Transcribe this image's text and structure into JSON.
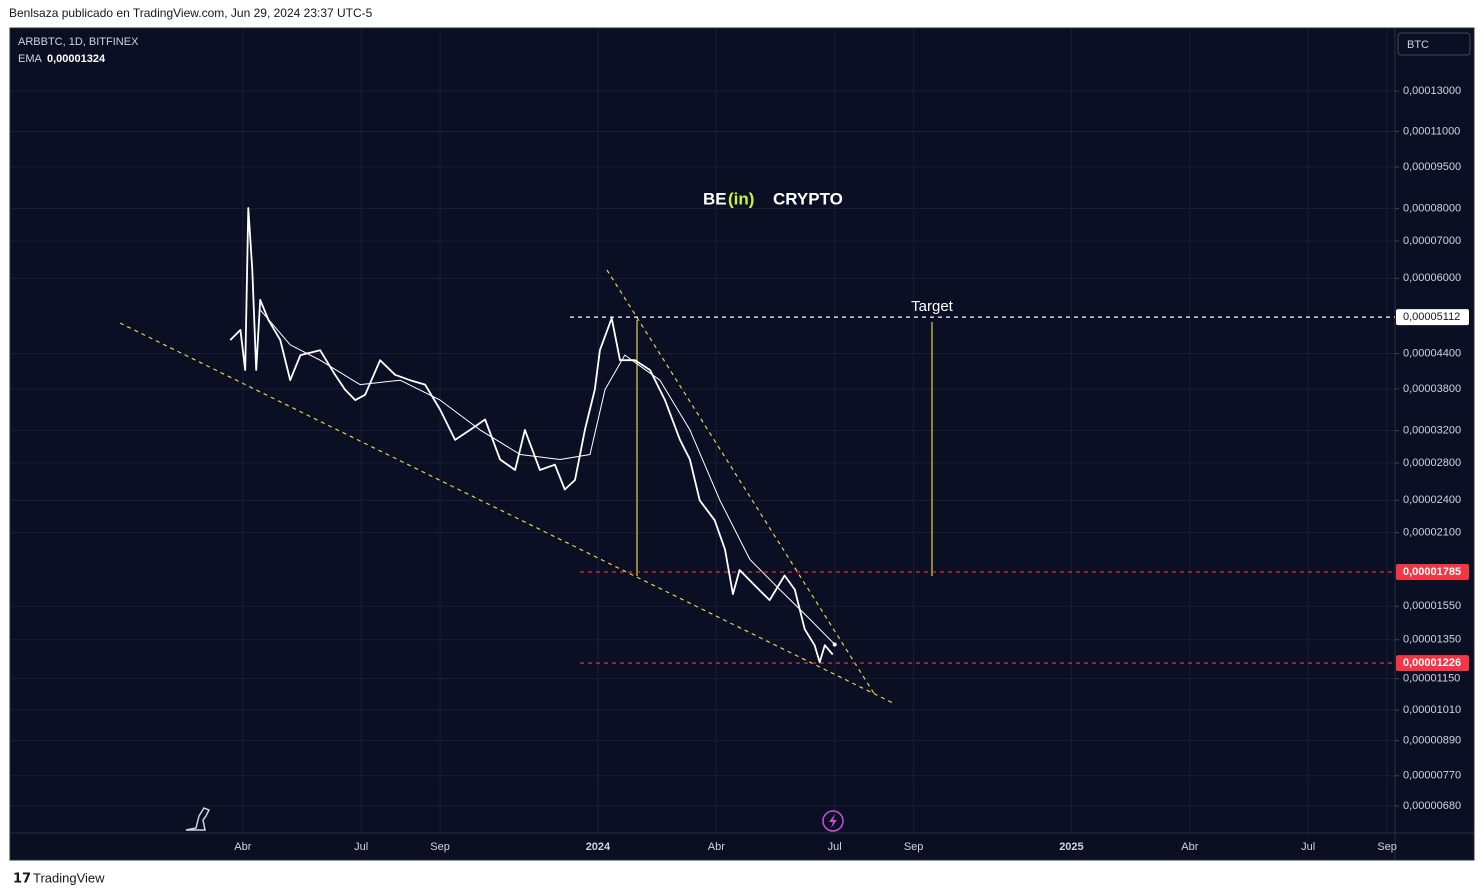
{
  "header": "Benlsaza publicado en TradingView.com, Jun 29, 2024 23:37 UTC-5",
  "footer": "TradingView",
  "currency": "BTC",
  "watermark": [
    "BE",
    "(in)",
    "CRYPTO"
  ],
  "chart_data": {
    "type": "line",
    "log_scale": true,
    "grid": true,
    "annotation": "Target",
    "xlim": [
      -14.9,
      20.2
    ],
    "xticks": [
      {
        "value": -9,
        "label": "Abr"
      },
      {
        "value": -6,
        "label": "Jul"
      },
      {
        "value": -4,
        "label": "Sep"
      },
      {
        "value": 0,
        "label": "2024"
      },
      {
        "value": 3,
        "label": "Abr"
      },
      {
        "value": 6,
        "label": "Jul"
      },
      {
        "value": 8,
        "label": "Sep"
      },
      {
        "value": 12,
        "label": "2025"
      },
      {
        "value": 15,
        "label": "Abr"
      },
      {
        "value": 18,
        "label": "Jul"
      },
      {
        "value": 20,
        "label": "Sep"
      }
    ],
    "ylim": [
      6.08e-06,
      0.0001686
    ],
    "yticks": [
      {
        "value": 0.00013,
        "label": "0,00013000"
      },
      {
        "value": 0.00011,
        "label": "0,00011000"
      },
      {
        "value": 9.5e-05,
        "label": "0,00009500"
      },
      {
        "value": 8e-05,
        "label": "0,00008000"
      },
      {
        "value": 7e-05,
        "label": "0,00007000"
      },
      {
        "value": 6e-05,
        "label": "0,00006000"
      },
      {
        "value": 4.4e-05,
        "label": "0,00004400"
      },
      {
        "value": 3.8e-05,
        "label": "0,00003800"
      },
      {
        "value": 3.2e-05,
        "label": "0,00003200"
      },
      {
        "value": 2.8e-05,
        "label": "0,00002800"
      },
      {
        "value": 2.4e-05,
        "label": "0,00002400"
      },
      {
        "value": 2.1e-05,
        "label": "0,00002100"
      },
      {
        "value": 1.55e-05,
        "label": "0,00001550"
      },
      {
        "value": 1.35e-05,
        "label": "0,00001350"
      },
      {
        "value": 1.15e-05,
        "label": "0,00001150"
      },
      {
        "value": 1.01e-05,
        "label": "0,00001010"
      },
      {
        "value": 8.9e-06,
        "label": "0,00000890"
      },
      {
        "value": 7.7e-06,
        "label": "0,00000770"
      },
      {
        "value": 6.8e-06,
        "label": "0,00000680"
      }
    ],
    "levels": [
      {
        "value": 5.112e-05,
        "label": "0,00005112",
        "color": "#ffffff"
      },
      {
        "value": 1.785e-05,
        "label": "0,00001785",
        "color": "#f23645"
      },
      {
        "value": 1.226e-05,
        "label": "0,00001226",
        "color": "#f23645"
      }
    ],
    "series": [
      {
        "name": "ARBBTC, 1D, BITFINEX",
        "color": "#ffffff",
        "x": [
          -9.32,
          -9.06,
          -8.94,
          -8.86,
          -8.76,
          -8.66,
          -8.56,
          -8.35,
          -8.05,
          -7.8,
          -7.54,
          -7.04,
          -6.66,
          -6.41,
          -6.15,
          -5.9,
          -5.52,
          -5.14,
          -4.76,
          -4.38,
          -4.0,
          -3.62,
          -3.24,
          -2.86,
          -2.48,
          -2.1,
          -1.85,
          -1.47,
          -1.09,
          -0.84,
          -0.58,
          -0.33,
          -0.08,
          0.05,
          0.35,
          0.56,
          0.94,
          1.32,
          1.7,
          2.08,
          2.33,
          2.58,
          2.96,
          3.22,
          3.42,
          3.59,
          3.97,
          4.35,
          4.73,
          4.99,
          5.24,
          5.49,
          5.62,
          5.75,
          5.95
        ],
        "values": [
          4.65e-05,
          4.85e-05,
          4.11e-05,
          8.02e-05,
          6.21e-05,
          4.11e-05,
          5.49e-05,
          5.05e-05,
          4.65e-05,
          3.94e-05,
          4.37e-05,
          4.46e-05,
          4.03e-05,
          3.79e-05,
          3.63e-05,
          3.71e-05,
          4.28e-05,
          4.03e-05,
          3.94e-05,
          3.87e-05,
          3.49e-05,
          3.08e-05,
          3.21e-05,
          3.35e-05,
          2.84e-05,
          2.72e-05,
          3.21e-05,
          2.72e-05,
          2.78e-05,
          2.51e-05,
          2.61e-05,
          3.21e-05,
          3.79e-05,
          4.46e-05,
          5.09e-05,
          4.28e-05,
          4.28e-05,
          4.11e-05,
          3.63e-05,
          3.08e-05,
          2.84e-05,
          2.4e-05,
          2.21e-05,
          1.96e-05,
          1.63e-05,
          1.8e-05,
          1.69e-05,
          1.59e-05,
          1.76e-05,
          1.66e-05,
          1.41e-05,
          1.32e-05,
          1.23e-05,
          1.32e-05,
          1.27e-05
        ]
      },
      {
        "name": "EMA",
        "color": "#ffffff",
        "last_value": {
          "value": 1.324e-05,
          "label": "0,00001324"
        },
        "x": [
          -8.56,
          -7.8,
          -7.04,
          -6.03,
          -5.01,
          -4.0,
          -2.99,
          -1.97,
          -0.96,
          -0.2,
          0.18,
          0.68,
          1.57,
          2.33,
          3.09,
          3.85,
          4.61,
          5.37,
          6.0
        ],
        "values": [
          5.27e-05,
          4.56e-05,
          4.28e-05,
          3.87e-05,
          3.94e-05,
          3.63e-05,
          3.21e-05,
          2.9e-05,
          2.84e-05,
          2.9e-05,
          3.79e-05,
          4.37e-05,
          3.94e-05,
          3.21e-05,
          2.4e-05,
          1.88e-05,
          1.66e-05,
          1.47e-05,
          1.324e-05
        ]
      }
    ]
  }
}
